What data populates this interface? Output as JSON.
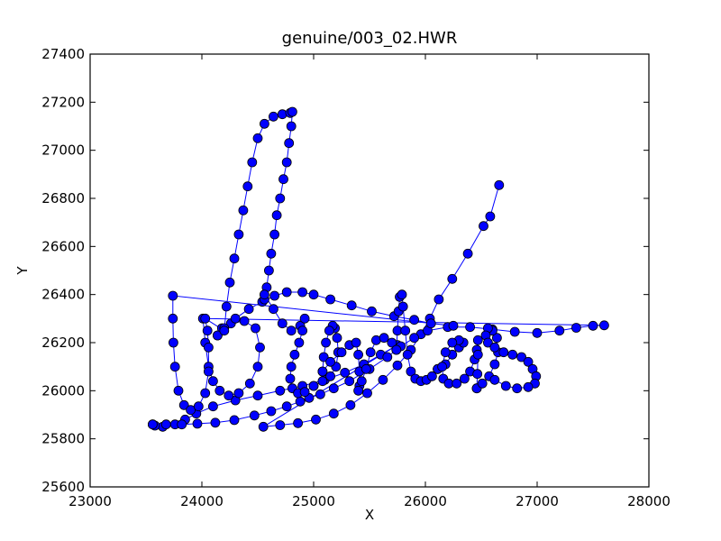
{
  "chart_data": {
    "type": "scatter",
    "title": "genuine/003_02.HWR",
    "xlabel": "X",
    "ylabel": "Y",
    "xlim": [
      23000,
      28000
    ],
    "ylim": [
      25600,
      27400
    ],
    "xticks": [
      "23000",
      "24000",
      "25000",
      "26000",
      "27000",
      "28000"
    ],
    "yticks": [
      "25600",
      "25800",
      "26000",
      "26200",
      "26400",
      "26600",
      "26800",
      "27000",
      "27200",
      "27400"
    ],
    "grid": false,
    "legend": "none",
    "colors": {
      "line": "#0000ff",
      "marker_fill": "#0000ff",
      "marker_edge": "#000000",
      "axes": "#000000",
      "background": "#ffffff"
    },
    "series": [
      {
        "points": [
          [
            26660,
            26855
          ],
          [
            26580,
            26725
          ],
          [
            26520,
            26685
          ],
          [
            26380,
            26570
          ],
          [
            26240,
            26465
          ],
          [
            26120,
            26380
          ],
          [
            26040,
            26300
          ],
          [
            25960,
            26235
          ],
          [
            25870,
            26170
          ],
          [
            25750,
            26105
          ],
          [
            25620,
            26045
          ],
          [
            25480,
            25990
          ],
          [
            25330,
            25940
          ],
          [
            25180,
            25905
          ],
          [
            25020,
            25880
          ],
          [
            24860,
            25865
          ],
          [
            24700,
            25857
          ],
          [
            24550,
            25850
          ],
          [
            25750,
            26190
          ],
          [
            25600,
            26150
          ],
          [
            25450,
            26110
          ],
          [
            25280,
            26075
          ],
          [
            25100,
            26045
          ],
          [
            24900,
            26020
          ],
          [
            24700,
            26000
          ],
          [
            24500,
            25980
          ],
          [
            24300,
            25960
          ],
          [
            24100,
            25935
          ],
          [
            23950,
            25905
          ],
          [
            23850,
            25880
          ],
          [
            23760,
            25860
          ],
          [
            23650,
            25850
          ],
          [
            23580,
            25855
          ],
          [
            23560,
            25860
          ],
          [
            23560,
            25860
          ],
          [
            23680,
            25860
          ],
          [
            23820,
            25860
          ],
          [
            23960,
            25863
          ],
          [
            24120,
            25867
          ],
          [
            24290,
            25878
          ],
          [
            24470,
            25897
          ],
          [
            24620,
            25915
          ],
          [
            24760,
            25935
          ],
          [
            24880,
            25955
          ],
          [
            24960,
            25970
          ],
          [
            25060,
            25985
          ],
          [
            25180,
            26010
          ],
          [
            25320,
            26040
          ],
          [
            25500,
            26090
          ],
          [
            25660,
            26140
          ],
          [
            25780,
            26185
          ],
          [
            25900,
            26220
          ],
          [
            26020,
            26250
          ],
          [
            26200,
            26265
          ],
          [
            26400,
            26265
          ],
          [
            26600,
            26255
          ],
          [
            26800,
            26245
          ],
          [
            27000,
            26240
          ],
          [
            27200,
            26250
          ],
          [
            27350,
            26262
          ],
          [
            27500,
            26270
          ],
          [
            27600,
            26272
          ],
          [
            24010,
            26300
          ],
          [
            24030,
            26200
          ],
          [
            24060,
            26100
          ],
          [
            24100,
            26040
          ],
          [
            24160,
            26000
          ],
          [
            24240,
            25980
          ],
          [
            24330,
            25990
          ],
          [
            24430,
            26030
          ],
          [
            24500,
            26100
          ],
          [
            24520,
            26180
          ],
          [
            24480,
            26260
          ],
          [
            24380,
            26290
          ],
          [
            24260,
            26280
          ],
          [
            24180,
            26260
          ],
          [
            24140,
            26230
          ],
          [
            24140,
            26230
          ],
          [
            24200,
            26260
          ],
          [
            24300,
            26300
          ],
          [
            24420,
            26340
          ],
          [
            24540,
            26370
          ],
          [
            24650,
            26395
          ],
          [
            24760,
            26410
          ],
          [
            24900,
            26410
          ],
          [
            25000,
            26400
          ],
          [
            25150,
            26380
          ],
          [
            25340,
            26355
          ],
          [
            25520,
            26330
          ],
          [
            25720,
            26310
          ],
          [
            25900,
            26295
          ],
          [
            26050,
            26280
          ],
          [
            26250,
            26270
          ],
          [
            23740,
            26395
          ],
          [
            23740,
            26300
          ],
          [
            23745,
            26200
          ],
          [
            23760,
            26100
          ],
          [
            23790,
            26000
          ],
          [
            23840,
            25940
          ],
          [
            23900,
            25920
          ],
          [
            23970,
            25935
          ],
          [
            24030,
            25990
          ],
          [
            24060,
            26080
          ],
          [
            24060,
            26180
          ],
          [
            24050,
            26250
          ],
          [
            24030,
            26300
          ],
          [
            24200,
            26250
          ],
          [
            24220,
            26350
          ],
          [
            24250,
            26450
          ],
          [
            24290,
            26550
          ],
          [
            24330,
            26650
          ],
          [
            24370,
            26750
          ],
          [
            24410,
            26850
          ],
          [
            24450,
            26950
          ],
          [
            24500,
            27050
          ],
          [
            24560,
            27110
          ],
          [
            24640,
            27140
          ],
          [
            24720,
            27150
          ],
          [
            24790,
            27155
          ],
          [
            24810,
            27160
          ],
          [
            24800,
            27100
          ],
          [
            24780,
            27030
          ],
          [
            24760,
            26950
          ],
          [
            24730,
            26880
          ],
          [
            24700,
            26800
          ],
          [
            24670,
            26730
          ],
          [
            24650,
            26650
          ],
          [
            24620,
            26570
          ],
          [
            24600,
            26500
          ],
          [
            24580,
            26430
          ],
          [
            24560,
            26380
          ],
          [
            24560,
            26400
          ],
          [
            24640,
            26340
          ],
          [
            24720,
            26280
          ],
          [
            24800,
            26250
          ],
          [
            24880,
            26270
          ],
          [
            24920,
            26300
          ],
          [
            24900,
            26250
          ],
          [
            24870,
            26200
          ],
          [
            24830,
            26150
          ],
          [
            24800,
            26100
          ],
          [
            24790,
            26050
          ],
          [
            24810,
            26010
          ],
          [
            24860,
            25990
          ],
          [
            24920,
            25995
          ],
          [
            25000,
            26020
          ],
          [
            25000,
            26020
          ],
          [
            25080,
            26040
          ],
          [
            25150,
            26060
          ],
          [
            25200,
            26100
          ],
          [
            25220,
            26160
          ],
          [
            25210,
            26220
          ],
          [
            25190,
            26260
          ],
          [
            25170,
            26270
          ],
          [
            25140,
            26250
          ],
          [
            25110,
            26200
          ],
          [
            25090,
            26140
          ],
          [
            25080,
            26080
          ],
          [
            25080,
            26080
          ],
          [
            25150,
            26120
          ],
          [
            25250,
            26160
          ],
          [
            25320,
            26190
          ],
          [
            25380,
            26200
          ],
          [
            25400,
            26150
          ],
          [
            25410,
            26080
          ],
          [
            25410,
            26020
          ],
          [
            25400,
            26000
          ],
          [
            25430,
            26040
          ],
          [
            25470,
            26090
          ],
          [
            25510,
            26160
          ],
          [
            25560,
            26210
          ],
          [
            25630,
            26220
          ],
          [
            25700,
            26200
          ],
          [
            25740,
            26170
          ],
          [
            25740,
            26170
          ],
          [
            25750,
            26250
          ],
          [
            25760,
            26330
          ],
          [
            25770,
            26390
          ],
          [
            25790,
            26400
          ],
          [
            25800,
            26350
          ],
          [
            25820,
            26250
          ],
          [
            25840,
            26150
          ],
          [
            25870,
            26080
          ],
          [
            25910,
            26050
          ],
          [
            25960,
            26040
          ],
          [
            26010,
            26045
          ],
          [
            26060,
            26060
          ],
          [
            26110,
            26090
          ],
          [
            26110,
            26090
          ],
          [
            26180,
            26110
          ],
          [
            26240,
            26150
          ],
          [
            26300,
            26180
          ],
          [
            26340,
            26200
          ],
          [
            26300,
            26210
          ],
          [
            26240,
            26200
          ],
          [
            26180,
            26160
          ],
          [
            26150,
            26100
          ],
          [
            26160,
            26050
          ],
          [
            26210,
            26030
          ],
          [
            26280,
            26030
          ],
          [
            26350,
            26050
          ],
          [
            26400,
            26080
          ],
          [
            26440,
            26130
          ],
          [
            26460,
            26170
          ],
          [
            26470,
            26210
          ],
          [
            26470,
            26150
          ],
          [
            26465,
            26070
          ],
          [
            26460,
            26010
          ],
          [
            26460,
            26010
          ],
          [
            26510,
            26030
          ],
          [
            26570,
            26060
          ],
          [
            26620,
            26110
          ],
          [
            26650,
            26160
          ],
          [
            26640,
            26220
          ],
          [
            26600,
            26250
          ],
          [
            26560,
            26260
          ],
          [
            26540,
            26230
          ],
          [
            26560,
            26200
          ],
          [
            26620,
            26180
          ],
          [
            26700,
            26160
          ],
          [
            26780,
            26150
          ],
          [
            26860,
            26140
          ],
          [
            26920,
            26120
          ],
          [
            26960,
            26090
          ],
          [
            26990,
            26060
          ],
          [
            26980,
            26030
          ],
          [
            26920,
            26015
          ],
          [
            26820,
            26010
          ],
          [
            26720,
            26020
          ],
          [
            26620,
            26045
          ]
        ]
      }
    ]
  }
}
